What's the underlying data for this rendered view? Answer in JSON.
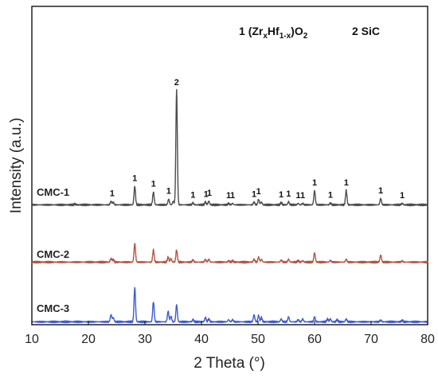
{
  "chart_data": {
    "type": "line",
    "xlabel": "2 Theta (°)",
    "ylabel": "Intensity (a.u.)",
    "xlim": [
      10,
      80
    ],
    "x_ticks": [
      "10",
      "20",
      "30",
      "40",
      "50",
      "60",
      "70",
      "80"
    ],
    "legend": {
      "item1_number": "1",
      "item1_formula": {
        "open": "(Zr",
        "x": "x",
        "mid": "Hf",
        "one_minus_x": "1-x",
        "close": ")O",
        "two": "2"
      },
      "item2": "2 SiC"
    },
    "series": [
      {
        "name": "CMC-1",
        "color": "#4d4d4d",
        "peaks": [
          {
            "x": 17.6,
            "height": 0.6
          },
          {
            "x": 24.0,
            "height": 2.5
          },
          {
            "x": 24.4,
            "height": 1.8
          },
          {
            "x": 28.2,
            "height": 13
          },
          {
            "x": 31.5,
            "height": 9
          },
          {
            "x": 34.2,
            "height": 4
          },
          {
            "x": 35.0,
            "height": 2.5
          },
          {
            "x": 35.6,
            "height": 80
          },
          {
            "x": 38.5,
            "height": 1.4
          },
          {
            "x": 40.7,
            "height": 2
          },
          {
            "x": 41.3,
            "height": 2.6
          },
          {
            "x": 44.8,
            "height": 1
          },
          {
            "x": 45.5,
            "height": 1
          },
          {
            "x": 49.3,
            "height": 2
          },
          {
            "x": 50.1,
            "height": 3.8
          },
          {
            "x": 50.6,
            "height": 2
          },
          {
            "x": 54.1,
            "height": 1.6
          },
          {
            "x": 55.4,
            "height": 2.2
          },
          {
            "x": 57.1,
            "height": 1
          },
          {
            "x": 57.9,
            "height": 1
          },
          {
            "x": 60.0,
            "height": 10
          },
          {
            "x": 62.8,
            "height": 1.3
          },
          {
            "x": 65.6,
            "height": 10
          },
          {
            "x": 71.7,
            "height": 4.5
          },
          {
            "x": 75.5,
            "height": 1
          }
        ],
        "peak_markers": [
          {
            "x": 24.2,
            "text": "1"
          },
          {
            "x": 28.2,
            "text": "1"
          },
          {
            "x": 31.5,
            "text": "1"
          },
          {
            "x": 34.2,
            "text": "1"
          },
          {
            "x": 35.6,
            "text": "2"
          },
          {
            "x": 38.5,
            "text": "1"
          },
          {
            "x": 40.8,
            "text": "1"
          },
          {
            "x": 41.4,
            "text": "1"
          },
          {
            "x": 44.8,
            "text": "1"
          },
          {
            "x": 45.5,
            "text": "1"
          },
          {
            "x": 49.3,
            "text": "1"
          },
          {
            "x": 50.1,
            "text": "1"
          },
          {
            "x": 54.1,
            "text": "1"
          },
          {
            "x": 55.4,
            "text": "1"
          },
          {
            "x": 57.1,
            "text": "1"
          },
          {
            "x": 57.9,
            "text": "1"
          },
          {
            "x": 60.0,
            "text": "1"
          },
          {
            "x": 62.8,
            "text": "1"
          },
          {
            "x": 65.6,
            "text": "1"
          },
          {
            "x": 71.7,
            "text": "1"
          },
          {
            "x": 75.5,
            "text": "1"
          }
        ]
      },
      {
        "name": "CMC-2",
        "color": "#b5533f",
        "peaks": [
          {
            "x": 24.0,
            "height": 2.5
          },
          {
            "x": 24.4,
            "height": 1.8
          },
          {
            "x": 28.2,
            "height": 13
          },
          {
            "x": 31.5,
            "height": 8.5
          },
          {
            "x": 34.1,
            "height": 3.5
          },
          {
            "x": 34.6,
            "height": 2.5
          },
          {
            "x": 35.6,
            "height": 8.5
          },
          {
            "x": 38.5,
            "height": 1.5
          },
          {
            "x": 40.7,
            "height": 1.8
          },
          {
            "x": 41.3,
            "height": 2
          },
          {
            "x": 44.8,
            "height": 0.9
          },
          {
            "x": 45.5,
            "height": 0.9
          },
          {
            "x": 49.3,
            "height": 2
          },
          {
            "x": 50.1,
            "height": 3.5
          },
          {
            "x": 50.6,
            "height": 2
          },
          {
            "x": 54.1,
            "height": 1.5
          },
          {
            "x": 55.4,
            "height": 2
          },
          {
            "x": 57.1,
            "height": 1
          },
          {
            "x": 57.9,
            "height": 1
          },
          {
            "x": 60.0,
            "height": 6.5
          },
          {
            "x": 62.8,
            "height": 1.2
          },
          {
            "x": 65.6,
            "height": 2
          },
          {
            "x": 71.7,
            "height": 5
          },
          {
            "x": 75.5,
            "height": 0.8
          }
        ]
      },
      {
        "name": "CMC-3",
        "color": "#3c5bd6",
        "peaks": [
          {
            "x": 24.0,
            "height": 5
          },
          {
            "x": 24.4,
            "height": 3
          },
          {
            "x": 28.2,
            "height": 24
          },
          {
            "x": 31.5,
            "height": 14
          },
          {
            "x": 34.1,
            "height": 7.5
          },
          {
            "x": 34.6,
            "height": 4
          },
          {
            "x": 35.6,
            "height": 12
          },
          {
            "x": 38.5,
            "height": 1.5
          },
          {
            "x": 40.7,
            "height": 3
          },
          {
            "x": 41.3,
            "height": 2
          },
          {
            "x": 44.8,
            "height": 1.5
          },
          {
            "x": 45.5,
            "height": 1.5
          },
          {
            "x": 49.3,
            "height": 5
          },
          {
            "x": 50.1,
            "height": 4.5
          },
          {
            "x": 50.6,
            "height": 3
          },
          {
            "x": 54.1,
            "height": 2
          },
          {
            "x": 55.4,
            "height": 3.5
          },
          {
            "x": 57.1,
            "height": 1.5
          },
          {
            "x": 57.9,
            "height": 2
          },
          {
            "x": 60.0,
            "height": 3.5
          },
          {
            "x": 62.3,
            "height": 2
          },
          {
            "x": 62.8,
            "height": 2
          },
          {
            "x": 64.0,
            "height": 1.5
          },
          {
            "x": 65.6,
            "height": 2
          },
          {
            "x": 71.7,
            "height": 1.2
          },
          {
            "x": 75.5,
            "height": 1
          }
        ]
      }
    ]
  }
}
